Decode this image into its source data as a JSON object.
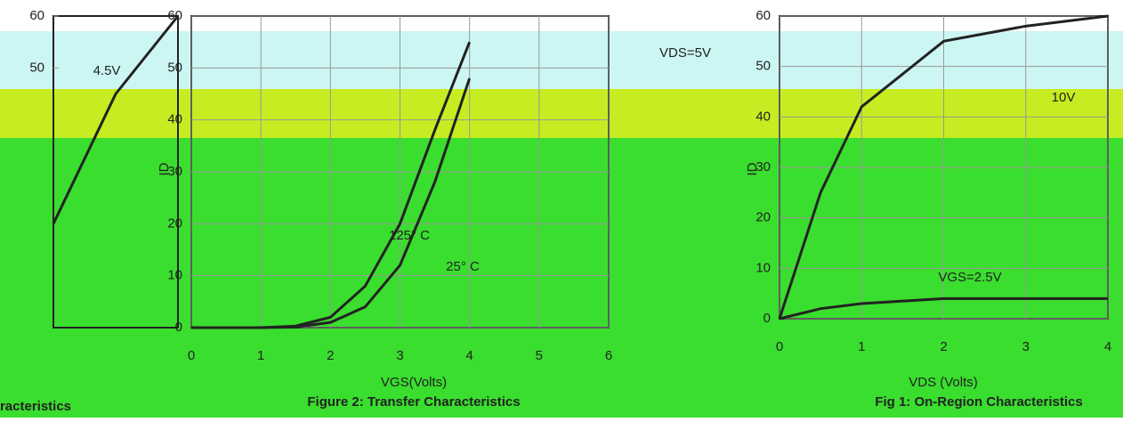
{
  "chart_data": [
    {
      "type": "line",
      "title": "Figure 2: Transfer Characteristics",
      "xlabel": "VGS(Volts)",
      "ylabel": "ID",
      "x": [
        0,
        1,
        1.5,
        2,
        2.5,
        3,
        3.5,
        4
      ],
      "series": [
        {
          "name": "125° C",
          "color": "#222222",
          "values": [
            0,
            0,
            0.3,
            2,
            8,
            20,
            38,
            55
          ]
        },
        {
          "name": "25° C",
          "color": "#222222",
          "values": [
            0,
            0,
            0.1,
            1,
            4,
            12,
            28,
            48
          ]
        }
      ],
      "xlim": [
        0,
        6
      ],
      "xticks": [
        0,
        1,
        2,
        3,
        4,
        5,
        6
      ],
      "ylim": [
        0,
        60
      ],
      "yticks": [
        0,
        10,
        20,
        30,
        40,
        50,
        60
      ],
      "grid": true
    },
    {
      "type": "line",
      "title": "Fig 1: On-Region Characteristics",
      "xlabel": "VDS (Volts)",
      "ylabel": "ID",
      "annotation": "VDS=5V",
      "x": [
        0,
        0.5,
        1,
        2,
        3,
        4
      ],
      "series": [
        {
          "name": "10V",
          "color": "#222222",
          "values": [
            0,
            25,
            42,
            55,
            58,
            60
          ]
        },
        {
          "name": "VGS=2.5V",
          "color": "#222222",
          "values": [
            0,
            2,
            3,
            4,
            4,
            4
          ]
        }
      ],
      "xlim": [
        0,
        4
      ],
      "xticks": [
        0,
        1,
        2,
        3,
        4
      ],
      "ylim": [
        0,
        60
      ],
      "yticks": [
        0,
        10,
        20,
        30,
        40,
        50,
        60
      ],
      "grid": true
    },
    {
      "type": "line",
      "title": "racteristics",
      "x": [
        0,
        1,
        2
      ],
      "series": [
        {
          "name": "4.5V",
          "color": "#222222",
          "values": [
            20,
            45,
            60
          ]
        }
      ],
      "xlim": [
        0,
        2
      ],
      "ylim": [
        0,
        60
      ],
      "yticks": [
        50,
        60
      ],
      "grid": false
    }
  ]
}
